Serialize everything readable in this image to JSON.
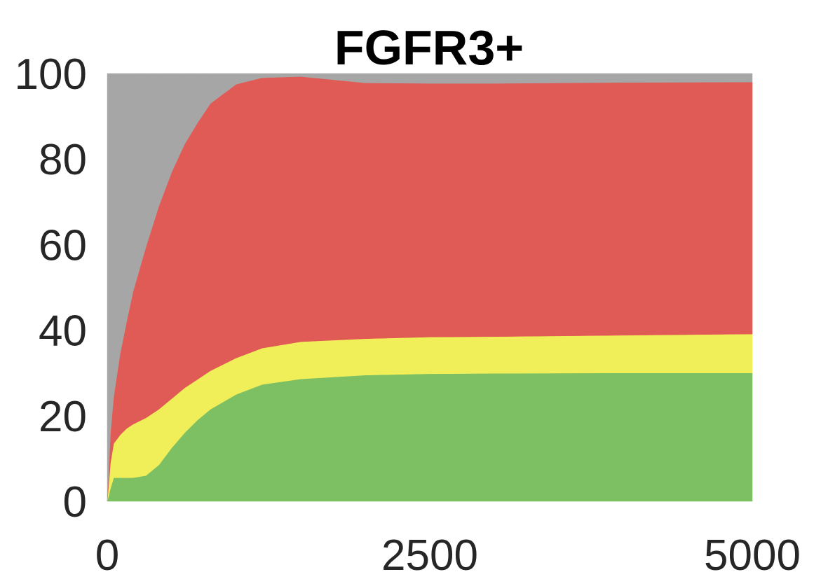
{
  "chart_data": {
    "type": "area",
    "stacked": true,
    "title": "FGFR3+",
    "xlabel": "",
    "ylabel": "",
    "xlim": [
      0,
      5000
    ],
    "ylim": [
      0,
      100
    ],
    "x_ticks": [
      0,
      2500,
      5000
    ],
    "x_tick_labels": [
      "0",
      "2500",
      "5000"
    ],
    "y_ticks": [
      0,
      20,
      40,
      60,
      80,
      100
    ],
    "y_tick_labels": [
      "0",
      "20",
      "40",
      "60",
      "80",
      "100"
    ],
    "grid": false,
    "legend": "none",
    "x": [
      0,
      25,
      50,
      100,
      150,
      200,
      300,
      400,
      500,
      600,
      700,
      800,
      1000,
      1200,
      1500,
      2000,
      2500,
      3000,
      4000,
      5000
    ],
    "series": [
      {
        "color": "#7cc063",
        "values": [
          0,
          3,
          5.5,
          5.5,
          5.5,
          5.5,
          6,
          8.5,
          12.5,
          16,
          19,
          21.5,
          25,
          27.3,
          28.6,
          29.5,
          29.8,
          29.9,
          30,
          30
        ]
      },
      {
        "color": "#f0ef5a",
        "values": [
          0,
          6,
          8,
          10,
          11.5,
          12.5,
          13.5,
          13,
          11.5,
          10.5,
          9.5,
          9,
          8.5,
          8.5,
          8.7,
          8.5,
          8.6,
          8.6,
          8.8,
          9.1
        ]
      },
      {
        "color": "#e05b55",
        "values": [
          0,
          7,
          11,
          19,
          25,
          31,
          40,
          47.5,
          53,
          57,
          60,
          62.5,
          64,
          63.2,
          62,
          59.8,
          59.3,
          59.2,
          59.1,
          58.9
        ]
      },
      {
        "color": "#a6a6a6",
        "values": [
          100,
          84,
          75.5,
          65.5,
          58,
          51,
          40.5,
          31,
          23,
          16.5,
          11.5,
          7,
          2.5,
          1,
          0.7,
          2.2,
          2.3,
          2.3,
          2.1,
          2
        ]
      }
    ]
  }
}
